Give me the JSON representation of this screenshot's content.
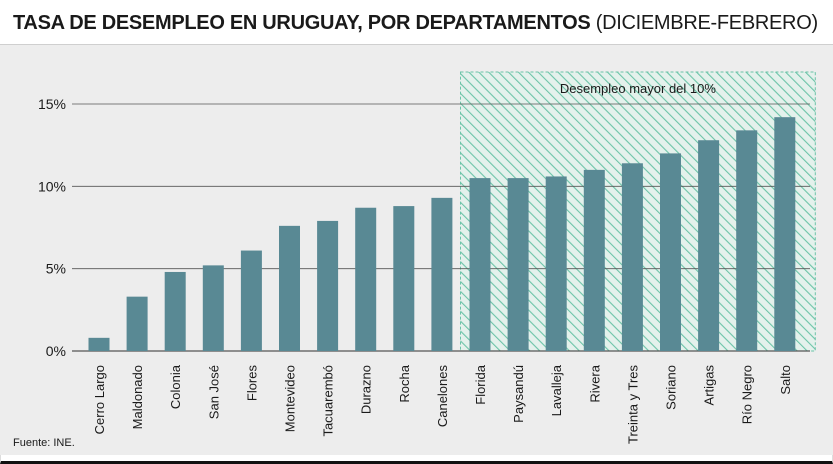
{
  "header": {
    "title": "TASA DE DESEMPLEO EN URUGUAY, POR DEPARTAMENTOS",
    "subtitle": "(DICIEMBRE-FEBRERO)"
  },
  "source": "Fuente: INE.",
  "colors": {
    "bar": "#598994",
    "highlight": "#6cc4a8",
    "background": "#ededed",
    "grid": "#555555"
  },
  "chart_data": {
    "type": "bar",
    "title": "TASA DE DESEMPLEO EN URUGUAY, POR DEPARTAMENTOS (DICIEMBRE-FEBRERO)",
    "xlabel": "",
    "ylabel": "",
    "categories": [
      "Cerro Largo",
      "Maldonado",
      "Colonia",
      "San José",
      "Flores",
      "Montevideo",
      "Tacuarembó",
      "Durazno",
      "Rocha",
      "Canelones",
      "Florida",
      "Paysandú",
      "Lavalleja",
      "Rivera",
      "Treinta y Tres",
      "Soriano",
      "Artigas",
      "Río Negro",
      "Salto"
    ],
    "values": [
      0.8,
      3.3,
      4.8,
      5.2,
      6.1,
      7.6,
      7.9,
      8.7,
      8.8,
      9.3,
      10.5,
      10.5,
      10.6,
      11.0,
      11.4,
      12.0,
      12.8,
      13.4,
      14.2
    ],
    "ylim": [
      0,
      15
    ],
    "yticks": [
      0,
      5,
      10,
      15
    ],
    "ytick_labels": [
      "0%",
      "5%",
      "10%",
      "15%"
    ],
    "grid": true,
    "annotation": {
      "label": "Desempleo mayor del 10%",
      "from_category": "Florida",
      "to_category": "Salto"
    }
  }
}
